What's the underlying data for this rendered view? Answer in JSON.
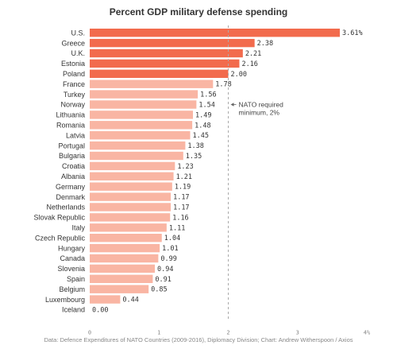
{
  "chart_data": {
    "type": "bar",
    "orientation": "horizontal",
    "title": "Percent GDP military defense spending",
    "categories": [
      "U.S.",
      "Greece",
      "U.K.",
      "Estonia",
      "Poland",
      "France",
      "Turkey",
      "Norway",
      "Lithuania",
      "Romania",
      "Latvia",
      "Portugal",
      "Bulgaria",
      "Croatia",
      "Albania",
      "Germany",
      "Denmark",
      "Netherlands",
      "Slovak Republic",
      "Italy",
      "Czech Republic",
      "Hungary",
      "Canada",
      "Slovenia",
      "Spain",
      "Belgium",
      "Luxembourg",
      "Iceland"
    ],
    "values": [
      3.61,
      2.38,
      2.21,
      2.16,
      2.0,
      1.78,
      1.56,
      1.54,
      1.49,
      1.48,
      1.45,
      1.38,
      1.35,
      1.23,
      1.21,
      1.19,
      1.17,
      1.17,
      1.16,
      1.11,
      1.04,
      1.01,
      0.99,
      0.94,
      0.91,
      0.85,
      0.44,
      0.0
    ],
    "value_labels": [
      "3.61%",
      "2.38",
      "2.21",
      "2.16",
      "2.00",
      "1.78",
      "1.56",
      "1.54",
      "1.49",
      "1.48",
      "1.45",
      "1.38",
      "1.35",
      "1.23",
      "1.21",
      "1.19",
      "1.17",
      "1.17",
      "1.16",
      "1.11",
      "1.04",
      "1.01",
      "0.99",
      "0.94",
      "0.91",
      "0.85",
      "0.44",
      "0.00"
    ],
    "highlighted_count": 5,
    "xlim": [
      0,
      4
    ],
    "x_ticks": [
      0,
      1,
      2,
      3,
      4
    ],
    "x_tick_labels": [
      "0",
      "1",
      "2",
      "3",
      "4%"
    ],
    "reference_line": {
      "x": 2,
      "label_lines": [
        "NATO required",
        "minimum, 2%"
      ]
    },
    "colors": {
      "highlight": "#f26b4d",
      "base": "#f9b5a3",
      "reference_line": "#aaaaaa"
    },
    "source": "Data: Defence Expenditures of NATO Countries (2009-2016), Diplomacy Division; Chart: Andrew Witherspoon / Axios"
  }
}
